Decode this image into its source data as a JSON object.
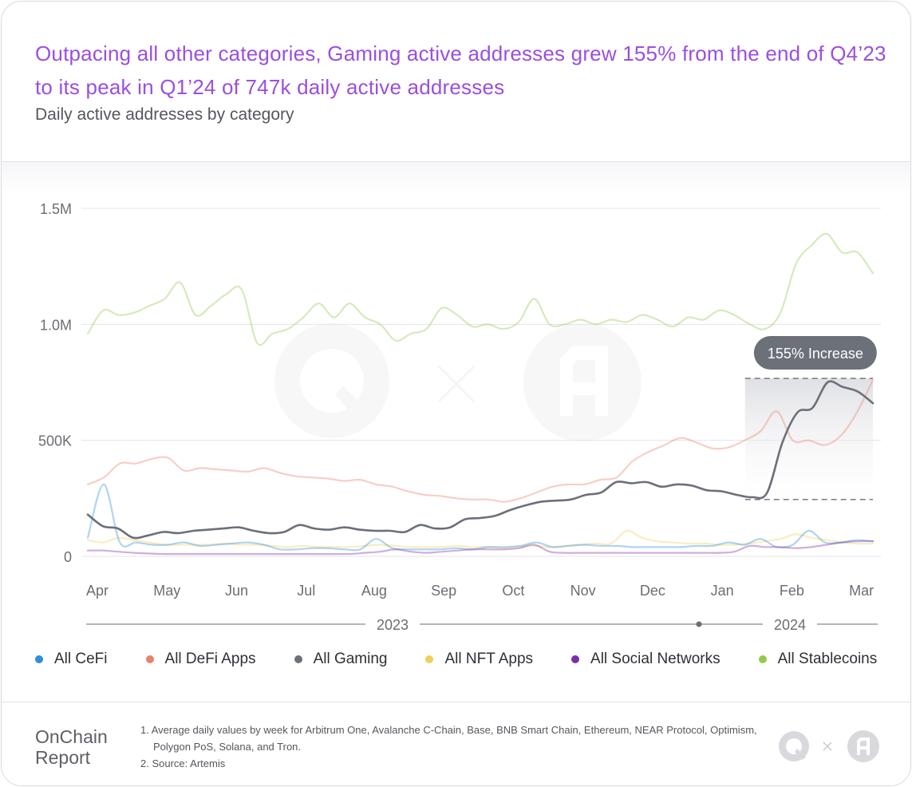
{
  "header": {
    "title": "Outpacing all other categories, Gaming active addresses grew 155% from the end of Q4’23 to its peak in Q1’24 of 747k daily active addresses",
    "subtitle": "Daily active addresses by category"
  },
  "annotation": {
    "label": "155% Increase"
  },
  "footer": {
    "brand_line1": "OnChain",
    "brand_line2": "Report",
    "notes": [
      "1. Average daily values by week for Arbitrum One, Avalanche C-Chain, Base, BNB Smart Chain, Ethereum, NEAR Protocol, Optimism, Polygon PoS, Solana, and Tron.",
      "2. Source: Artemis"
    ]
  },
  "colors": {
    "cefi": "#2f8fd8",
    "defi": "#e8826a",
    "gaming": "#6b7079",
    "nft": "#f0cf5a",
    "social": "#7b2ea8",
    "stablecoins": "#94c84e"
  },
  "chart_data": {
    "type": "line",
    "title": "Daily active addresses by category",
    "ylim": [
      0,
      1500000
    ],
    "yticks": [
      0,
      500000,
      1000000,
      1500000
    ],
    "ytick_labels": [
      "0",
      "500K",
      "1.0M",
      "1.5M"
    ],
    "month_labels": [
      "Apr",
      "May",
      "Jun",
      "Jul",
      "Aug",
      "Sep",
      "Oct",
      "Nov",
      "Dec",
      "Jan",
      "Feb",
      "Mar"
    ],
    "month_positions": [
      0,
      4.3,
      8.6,
      12.9,
      17.1,
      21.4,
      25.7,
      30,
      34.3,
      38.6,
      42.9,
      47.2
    ],
    "year_labels": [
      "2023",
      "2024"
    ],
    "x_range": [
      0,
      48.5
    ],
    "highlight": {
      "x_start": 40.6,
      "x_end": 48.5,
      "y_low": 245000,
      "y_high": 767000,
      "label": "155% Increase"
    },
    "series": [
      {
        "name": "All CeFi",
        "key": "cefi",
        "values": [
          80000,
          310000,
          60000,
          60000,
          50000,
          50000,
          60000,
          45000,
          50000,
          55000,
          60000,
          50000,
          30000,
          30000,
          35000,
          35000,
          30000,
          30000,
          75000,
          35000,
          30000,
          30000,
          30000,
          35000,
          30000,
          40000,
          40000,
          45000,
          60000,
          40000,
          45000,
          50000,
          45000,
          45000,
          40000,
          40000,
          40000,
          40000,
          45000,
          45000,
          60000,
          50000,
          75000,
          40000,
          50000,
          110000,
          60000,
          60000,
          70000,
          65000
        ]
      },
      {
        "name": "All DeFi Apps",
        "key": "defi",
        "values": [
          310000,
          340000,
          400000,
          400000,
          420000,
          425000,
          370000,
          380000,
          375000,
          370000,
          365000,
          380000,
          360000,
          345000,
          340000,
          335000,
          325000,
          330000,
          310000,
          300000,
          280000,
          265000,
          260000,
          250000,
          245000,
          245000,
          235000,
          250000,
          275000,
          300000,
          310000,
          310000,
          330000,
          340000,
          410000,
          450000,
          480000,
          510000,
          490000,
          465000,
          470000,
          500000,
          540000,
          625000,
          500000,
          500000,
          480000,
          520000,
          620000,
          760000
        ]
      },
      {
        "name": "All Gaming",
        "key": "gaming",
        "values": [
          180000,
          130000,
          120000,
          80000,
          90000,
          105000,
          100000,
          110000,
          115000,
          120000,
          125000,
          110000,
          100000,
          105000,
          135000,
          120000,
          115000,
          125000,
          115000,
          110000,
          110000,
          105000,
          135000,
          120000,
          125000,
          160000,
          165000,
          175000,
          200000,
          220000,
          235000,
          240000,
          245000,
          265000,
          275000,
          320000,
          315000,
          320000,
          300000,
          310000,
          305000,
          285000,
          280000,
          265000,
          255000,
          275000,
          490000,
          620000,
          640000,
          750000,
          730000,
          710000,
          660000
        ]
      },
      {
        "name": "All NFT Apps",
        "key": "nft",
        "values": [
          70000,
          60000,
          80000,
          70000,
          60000,
          50000,
          50000,
          50000,
          50000,
          55000,
          50000,
          50000,
          45000,
          40000,
          45000,
          40000,
          40000,
          40000,
          45000,
          50000,
          45000,
          40000,
          40000,
          40000,
          45000,
          40000,
          40000,
          35000,
          40000,
          45000,
          40000,
          45000,
          50000,
          55000,
          55000,
          110000,
          80000,
          65000,
          60000,
          55000,
          55000,
          50000,
          50000,
          55000,
          65000,
          75000,
          95000,
          80000,
          70000,
          60000,
          55000,
          55000
        ]
      },
      {
        "name": "All Social Networks",
        "key": "social",
        "values": [
          25000,
          25000,
          20000,
          15000,
          12000,
          10000,
          10000,
          10000,
          10000,
          10000,
          10000,
          10000,
          10000,
          10000,
          10000,
          10000,
          10000,
          10000,
          15000,
          20000,
          30000,
          20000,
          15000,
          20000,
          25000,
          30000,
          30000,
          30000,
          35000,
          50000,
          20000,
          15000,
          15000,
          15000,
          15000,
          15000,
          15000,
          15000,
          15000,
          15000,
          15000,
          15000,
          20000,
          45000,
          40000,
          40000,
          35000,
          40000,
          50000,
          60000,
          65000,
          65000
        ]
      },
      {
        "name": "All Stablecoins",
        "key": "stablecoins",
        "values": [
          960000,
          1060000,
          1040000,
          1050000,
          1080000,
          1110000,
          1180000,
          1040000,
          1080000,
          1130000,
          1150000,
          920000,
          960000,
          980000,
          1030000,
          1090000,
          1030000,
          1090000,
          1030000,
          1000000,
          930000,
          960000,
          980000,
          1070000,
          1040000,
          990000,
          1000000,
          980000,
          1010000,
          1110000,
          1000000,
          1000000,
          1020000,
          1000000,
          1020000,
          1010000,
          1040000,
          1020000,
          990000,
          1030000,
          1020000,
          1060000,
          1040000,
          1000000,
          980000,
          1050000,
          1260000,
          1340000,
          1390000,
          1310000,
          1310000,
          1220000
        ]
      }
    ]
  }
}
